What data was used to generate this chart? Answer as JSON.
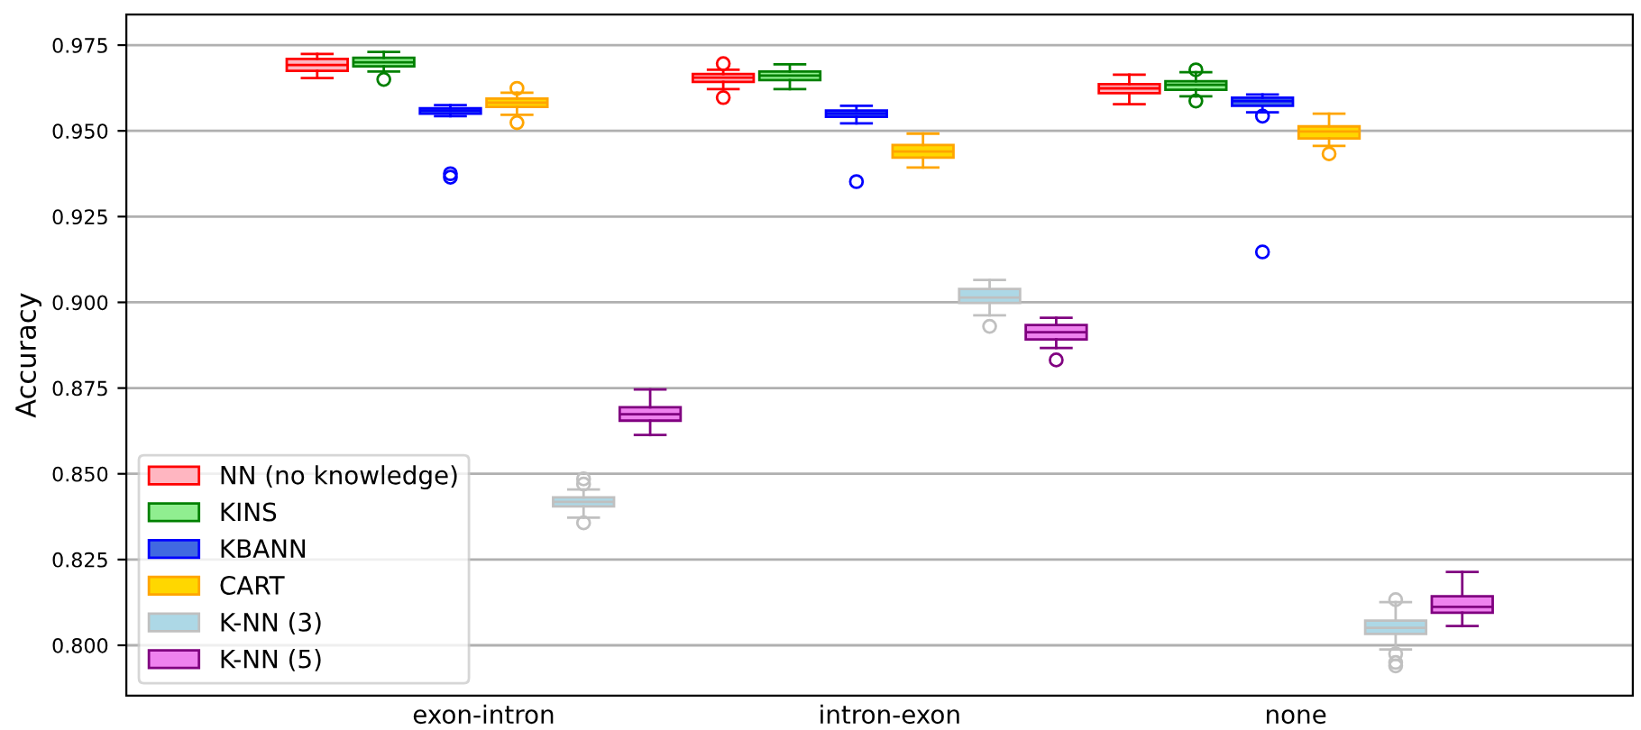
{
  "chart_data": {
    "type": "box",
    "ylabel": "Accuracy",
    "categories": [
      "exon-intron",
      "intron-exon",
      "none"
    ],
    "ylim": [
      0.7853,
      0.9839
    ],
    "yticks": [
      {
        "value": 0.8,
        "label": "0.800"
      },
      {
        "value": 0.825,
        "label": "0.825"
      },
      {
        "value": 0.85,
        "label": "0.850"
      },
      {
        "value": 0.875,
        "label": "0.875"
      },
      {
        "value": 0.9,
        "label": "0.900"
      },
      {
        "value": 0.925,
        "label": "0.925"
      },
      {
        "value": 0.95,
        "label": "0.950"
      },
      {
        "value": 0.975,
        "label": "0.975"
      }
    ],
    "grid": "y",
    "legend": "bottom left",
    "series": [
      {
        "name": "NN (no knowledge)",
        "color": "#ffb6c1",
        "boxes": [
          {
            "low": 0.9654,
            "q1": 0.9675,
            "median": 0.9692,
            "q3": 0.971,
            "high": 0.9724
          },
          {
            "low": 0.9622,
            "q1": 0.9643,
            "median": 0.9655,
            "q3": 0.9666,
            "high": 0.9678,
            "outliers": [
              0.9696,
              0.9597
            ]
          },
          {
            "low": 0.9578,
            "q1": 0.961,
            "median": 0.9624,
            "q3": 0.9636,
            "high": 0.9664
          }
        ]
      },
      {
        "name": "KINS",
        "color": "#90ee90",
        "boxes": [
          {
            "low": 0.9673,
            "q1": 0.9688,
            "median": 0.97,
            "q3": 0.9713,
            "high": 0.973,
            "outliers": [
              0.965
            ]
          },
          {
            "low": 0.9622,
            "q1": 0.9648,
            "median": 0.9661,
            "q3": 0.9673,
            "high": 0.9694
          },
          {
            "low": 0.9601,
            "q1": 0.962,
            "median": 0.9634,
            "q3": 0.9645,
            "high": 0.9671,
            "outliers": [
              0.9678,
              0.9587
            ]
          }
        ]
      },
      {
        "name": "KBANN",
        "color": "#4169e1",
        "boxes": [
          {
            "low": 0.9543,
            "q1": 0.955,
            "median": 0.9559,
            "q3": 0.9566,
            "high": 0.9575,
            "outliers": [
              0.9375,
              0.9365
            ]
          },
          {
            "low": 0.9522,
            "q1": 0.9541,
            "median": 0.955,
            "q3": 0.9559,
            "high": 0.9573,
            "outliers": [
              0.9352
            ]
          },
          {
            "low": 0.9554,
            "q1": 0.9573,
            "median": 0.9587,
            "q3": 0.9597,
            "high": 0.9606,
            "outliers": [
              0.9543,
              0.9147
            ]
          }
        ]
      },
      {
        "name": "CART",
        "color": "#ffd700",
        "boxes": [
          {
            "low": 0.9547,
            "q1": 0.957,
            "median": 0.9582,
            "q3": 0.9594,
            "high": 0.9611,
            "outliers": [
              0.9624,
              0.9524
            ]
          },
          {
            "low": 0.9393,
            "q1": 0.9422,
            "median": 0.944,
            "q3": 0.9459,
            "high": 0.9492
          },
          {
            "low": 0.9456,
            "q1": 0.9478,
            "median": 0.9498,
            "q3": 0.9513,
            "high": 0.955,
            "outliers": [
              0.9433
            ]
          }
        ]
      },
      {
        "name": "K-NN (3)",
        "color": "#add8e6",
        "boxes": [
          {
            "low": 0.8372,
            "q1": 0.8405,
            "median": 0.8418,
            "q3": 0.8431,
            "high": 0.8454,
            "outliers": [
              0.8485,
              0.847,
              0.8357
            ]
          },
          {
            "low": 0.8962,
            "q1": 0.8998,
            "median": 0.9014,
            "q3": 0.9039,
            "high": 0.9065,
            "outliers": [
              0.893
            ]
          },
          {
            "low": 0.7988,
            "q1": 0.8033,
            "median": 0.8051,
            "q3": 0.8072,
            "high": 0.8126,
            "outliers": [
              0.8133,
              0.7975,
              0.795,
              0.794
            ]
          }
        ]
      },
      {
        "name": "K-NN (5)",
        "color": "#ee82ee",
        "boxes": [
          {
            "low": 0.8613,
            "q1": 0.8655,
            "median": 0.8674,
            "q3": 0.8694,
            "high": 0.8746
          },
          {
            "low": 0.8867,
            "q1": 0.8892,
            "median": 0.8913,
            "q3": 0.8934,
            "high": 0.8955,
            "outliers": [
              0.8832
            ]
          },
          {
            "low": 0.8056,
            "q1": 0.8095,
            "median": 0.8112,
            "q3": 0.8143,
            "high": 0.8214
          }
        ]
      }
    ]
  }
}
